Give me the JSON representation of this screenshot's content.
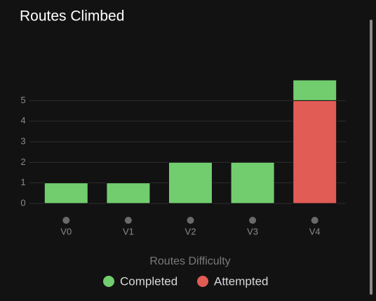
{
  "chart_data": {
    "type": "stacked_bar",
    "title": "Routes Climbed",
    "x_label": "Routes Difficulty",
    "categories": [
      "V0",
      "V1",
      "V2",
      "V3",
      "V4"
    ],
    "series": [
      {
        "name": "Completed",
        "color": "#72cd6e",
        "values": [
          1,
          1,
          2,
          2,
          1
        ]
      },
      {
        "name": "Attempted",
        "color": "#e05c55",
        "values": [
          0,
          0,
          0,
          0,
          5
        ]
      }
    ],
    "ylim": [
      0,
      6
    ],
    "yticks": [
      0,
      1,
      2,
      3,
      4,
      5
    ],
    "grid": true,
    "legend": "bottom"
  }
}
